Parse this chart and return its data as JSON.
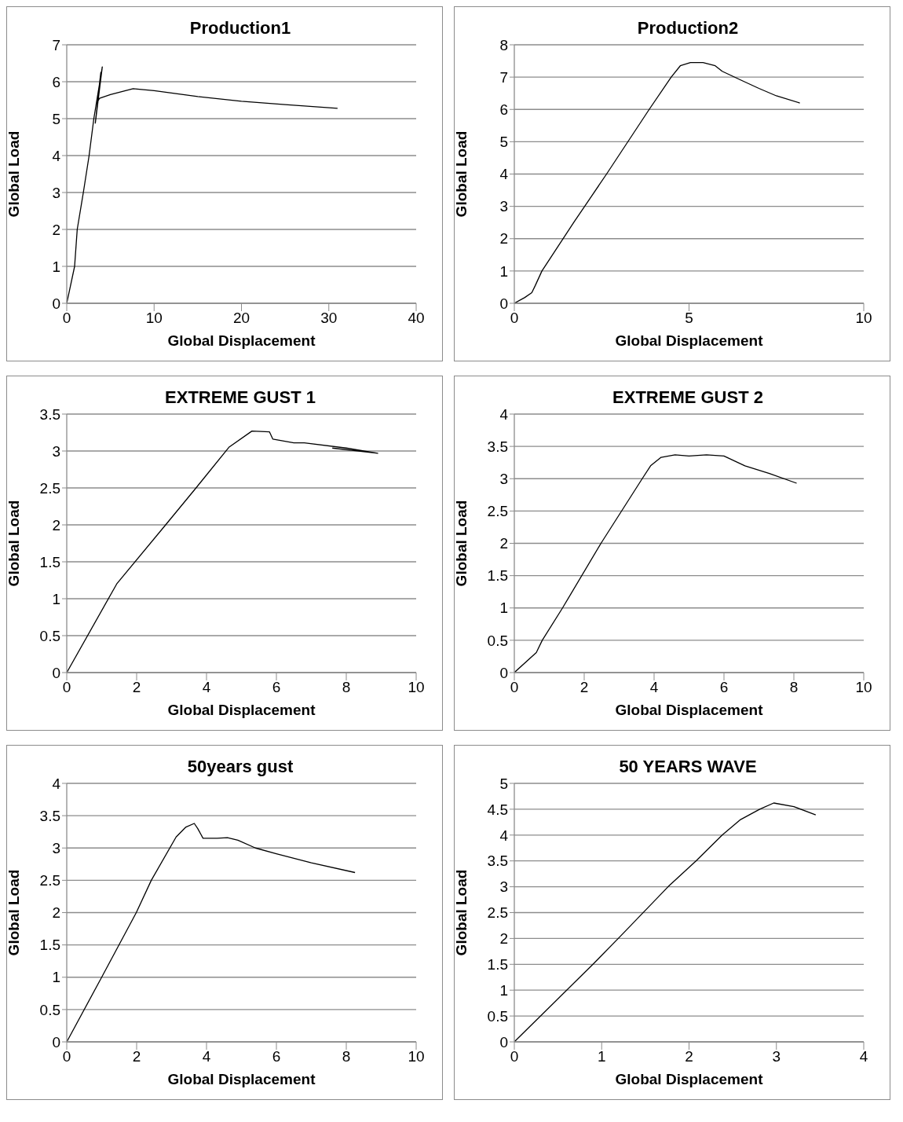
{
  "chart_data": [
    {
      "type": "line",
      "title": "Production1",
      "xlabel": "Global Displacement",
      "ylabel": "Global Load",
      "xlim": [
        0,
        40
      ],
      "xticks": [
        0,
        10,
        20,
        30,
        40
      ],
      "ylim": [
        0,
        7
      ],
      "yticks": [
        0,
        1,
        2,
        3,
        4,
        5,
        6,
        7
      ],
      "grid": "y",
      "series": [
        {
          "color": "#000000",
          "x": [
            0,
            0.9,
            1.2,
            1.9,
            2.56,
            3.1,
            4.07,
            3.27,
            3.9,
            3.5,
            3.75,
            5,
            7.6,
            10,
            15,
            20,
            25,
            31
          ],
          "values": [
            0,
            1,
            2,
            3,
            4,
            5,
            6.4,
            4.88,
            6.25,
            5.45,
            5.55,
            5.65,
            5.81,
            5.76,
            5.6,
            5.47,
            5.38,
            5.28
          ]
        }
      ]
    },
    {
      "type": "line",
      "title": "Production2",
      "xlabel": "Global Displacement",
      "ylabel": "Global Load",
      "xlim": [
        0,
        10
      ],
      "xticks": [
        0,
        5,
        10
      ],
      "ylim": [
        0,
        8
      ],
      "yticks": [
        0,
        1,
        2,
        3,
        4,
        5,
        6,
        7,
        8
      ],
      "grid": "y",
      "series": [
        {
          "color": "#000000",
          "x": [
            0,
            0.3,
            0.5,
            0.6,
            0.79,
            1.7,
            2.64,
            3.86,
            4.49,
            4.75,
            5.04,
            5.4,
            5.75,
            5.95,
            6.5,
            7,
            7.5,
            8.17
          ],
          "values": [
            0,
            0.18,
            0.33,
            0.55,
            1,
            2.5,
            4,
            6,
            7,
            7.35,
            7.45,
            7.45,
            7.35,
            7.18,
            6.9,
            6.65,
            6.42,
            6.2
          ]
        }
      ]
    },
    {
      "type": "line",
      "title": "EXTREME GUST 1",
      "xlabel": "Global Displacement",
      "ylabel": "Global Load",
      "xlim": [
        0,
        10
      ],
      "xticks": [
        0,
        2,
        4,
        6,
        8,
        10
      ],
      "ylim": [
        0,
        3.5
      ],
      "yticks": [
        0,
        0.5,
        1,
        1.5,
        2,
        2.5,
        3,
        3.5
      ],
      "grid": "y",
      "series": [
        {
          "color": "#000000",
          "x": [
            0,
            1.43,
            2.83,
            3.7,
            4.64,
            5.3,
            5.8,
            5.9,
            6.5,
            6.8,
            8,
            8.9,
            7.6
          ],
          "values": [
            0,
            1.2,
            2,
            2.5,
            3.05,
            3.27,
            3.26,
            3.16,
            3.11,
            3.11,
            3.04,
            2.97,
            3.04
          ]
        }
      ]
    },
    {
      "type": "line",
      "title": "EXTREME GUST 2",
      "xlabel": "Global Displacement",
      "ylabel": "Global Load",
      "xlim": [
        0,
        10
      ],
      "xticks": [
        0,
        2,
        4,
        6,
        8,
        10
      ],
      "ylim": [
        0,
        4
      ],
      "yticks": [
        0,
        0.5,
        1,
        1.5,
        2,
        2.5,
        3,
        3.5,
        4
      ],
      "grid": "y",
      "series": [
        {
          "color": "#000000",
          "x": [
            0,
            0.63,
            0.8,
            1.38,
            2.48,
            3.66,
            3.9,
            4.2,
            4.6,
            5,
            5.5,
            6,
            6.6,
            7.3,
            8.08
          ],
          "values": [
            0,
            0.31,
            0.5,
            1,
            2,
            3,
            3.2,
            3.33,
            3.37,
            3.35,
            3.37,
            3.35,
            3.2,
            3.08,
            2.93
          ]
        }
      ]
    },
    {
      "type": "line",
      "title": "50years gust",
      "xlabel": "Global Displacement",
      "ylabel": "Global Load",
      "xlim": [
        0,
        10
      ],
      "xticks": [
        0,
        2,
        4,
        6,
        8,
        10
      ],
      "ylim": [
        0,
        4
      ],
      "yticks": [
        0,
        0.5,
        1,
        1.5,
        2,
        2.5,
        3,
        3.5,
        4
      ],
      "grid": "y",
      "series": [
        {
          "color": "#000000",
          "x": [
            0,
            1,
            1.99,
            2.42,
            3.13,
            3.4,
            3.65,
            3.75,
            3.9,
            4.3,
            4.6,
            4.9,
            5.4,
            6,
            7,
            8.25
          ],
          "values": [
            0,
            1,
            2,
            2.5,
            3.17,
            3.32,
            3.38,
            3.3,
            3.15,
            3.15,
            3.16,
            3.12,
            3,
            2.91,
            2.77,
            2.62
          ]
        }
      ]
    },
    {
      "type": "line",
      "title": "50 YEARS WAVE",
      "xlabel": "Global Displacement",
      "ylabel": "Global Load",
      "xlim": [
        0,
        4
      ],
      "xticks": [
        0,
        1,
        2,
        3,
        4
      ],
      "ylim": [
        0,
        5
      ],
      "yticks": [
        0,
        0.5,
        1,
        1.5,
        2,
        2.5,
        3,
        3.5,
        4,
        4.5,
        5
      ],
      "grid": "y",
      "series": [
        {
          "color": "#000000",
          "x": [
            0,
            0.9,
            1.19,
            1.76,
            2.08,
            2.38,
            2.59,
            2.81,
            2.97,
            3.2,
            3.45
          ],
          "values": [
            0,
            1.5,
            2,
            3,
            3.5,
            4,
            4.3,
            4.5,
            4.62,
            4.55,
            4.39
          ]
        }
      ]
    }
  ]
}
